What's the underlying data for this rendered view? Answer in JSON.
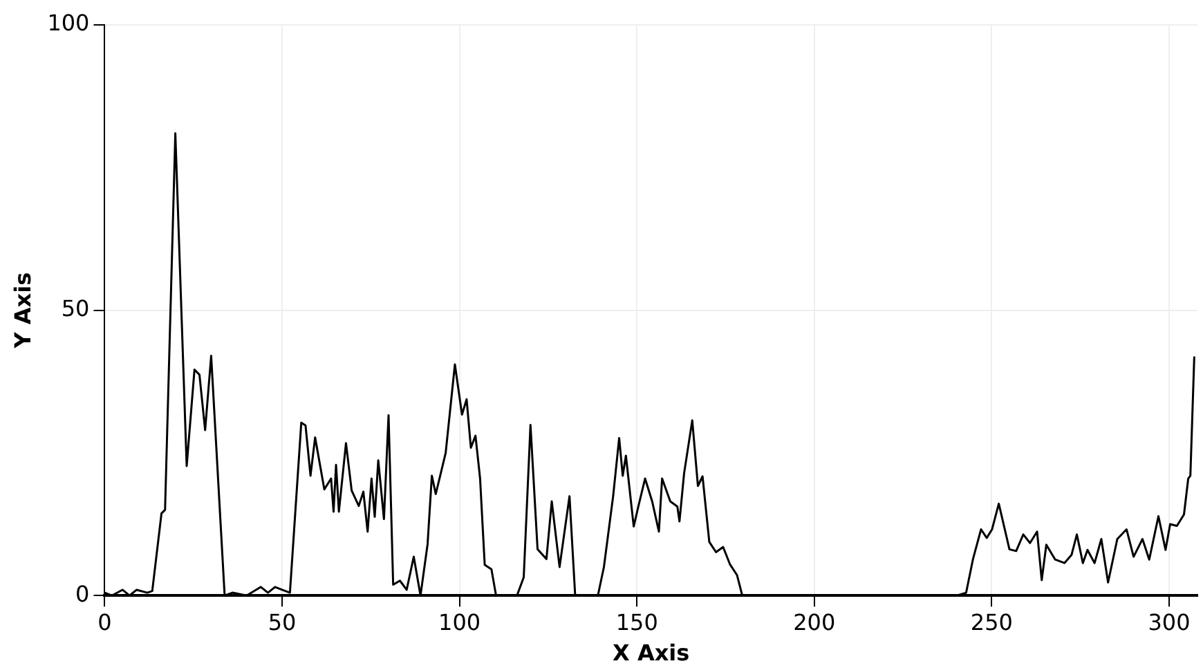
{
  "chart_data": {
    "type": "line",
    "xlabel": "X Axis",
    "ylabel": "Y Axis",
    "xlim": [
      0,
      308
    ],
    "xticks": [
      0,
      50,
      100,
      150,
      200,
      250,
      300
    ],
    "ylim": [
      0,
      100
    ],
    "yticks": [
      0,
      50,
      100
    ],
    "grid": true,
    "legend": false,
    "marker": "none",
    "line_style": "solid",
    "series": [
      {
        "color": "#000000",
        "x": [
          0,
          2,
          5,
          7,
          9,
          12,
          13.4,
          16,
          17,
          19.9,
          23.1,
          25.3,
          26.7,
          28.3,
          30,
          33.8,
          36,
          40,
          44,
          46,
          48,
          50,
          52.2,
          55.4,
          56.6,
          58,
          59.3,
          61.9,
          63.8,
          64.5,
          65.2,
          66,
          68,
          69.6,
          71.6,
          72.9,
          74.1,
          75.2,
          76.1,
          77.1,
          78.7,
          80,
          81.3,
          83.2,
          85.1,
          87.1,
          89,
          91,
          92.2,
          93.3,
          94.2,
          96.1,
          98.7,
          100.7,
          102,
          103.2,
          104.5,
          105.8,
          107.1,
          109,
          110.3,
          116.2,
          118.1,
          120,
          122,
          124.5,
          126,
          128.2,
          131,
          132.6,
          139,
          140.7,
          143.3,
          145,
          146,
          146.9,
          149.1,
          150.4,
          152.3,
          154.3,
          156.2,
          157.1,
          159.4,
          161.4,
          162,
          163.3,
          165.6,
          167.2,
          168.5,
          170.4,
          172.3,
          174.3,
          176.2,
          178.2,
          179.7,
          240.2,
          242.8,
          244.7,
          247,
          248.6,
          250.1,
          252,
          255,
          256.9,
          258.9,
          260.8,
          262.8,
          264.1,
          265.4,
          267.9,
          270.5,
          272.5,
          274,
          275.7,
          277,
          279,
          280.9,
          282.8,
          285.4,
          288,
          290,
          292.5,
          294.4,
          297,
          299,
          300.3,
          302.2,
          304.2,
          305.4,
          306,
          307.1
        ],
        "values": [
          0.5,
          0,
          1,
          0,
          1,
          0.5,
          0.8,
          14.4,
          15,
          81,
          22.7,
          39.6,
          38.7,
          29,
          42,
          0,
          0.5,
          0,
          1.5,
          0.5,
          1.5,
          1,
          0.5,
          30.3,
          29.8,
          21,
          27.7,
          18.6,
          20.5,
          14.7,
          22.9,
          14.7,
          26.7,
          18.4,
          15.7,
          18.2,
          11.2,
          20.5,
          13.8,
          23.7,
          13.4,
          31.6,
          1.9,
          2.6,
          1,
          6.8,
          0,
          9,
          21,
          17.8,
          20.1,
          25,
          40.5,
          31.7,
          34.4,
          25.9,
          28,
          20.5,
          5.4,
          4.6,
          0,
          0,
          3.2,
          29.9,
          8.1,
          6.4,
          16.5,
          5,
          17.4,
          0,
          0,
          5,
          17.4,
          27.6,
          21,
          24.5,
          12.1,
          15.6,
          20.5,
          16.5,
          11.2,
          20.5,
          16.5,
          15.6,
          13,
          21.4,
          30.7,
          19.2,
          20.9,
          9.4,
          7.6,
          8.5,
          5.5,
          3.6,
          0,
          0,
          0.5,
          6.3,
          11.6,
          10.1,
          11.6,
          16.1,
          8.1,
          7.8,
          10.7,
          9.2,
          11.2,
          2.7,
          8.9,
          6.3,
          5.7,
          7.1,
          10.7,
          5.7,
          8,
          5.7,
          9.9,
          2.3,
          9.9,
          11.6,
          6.8,
          9.9,
          6.3,
          13.9,
          8,
          12.5,
          12.2,
          14.2,
          20.5,
          21,
          41.9
        ]
      }
    ]
  }
}
